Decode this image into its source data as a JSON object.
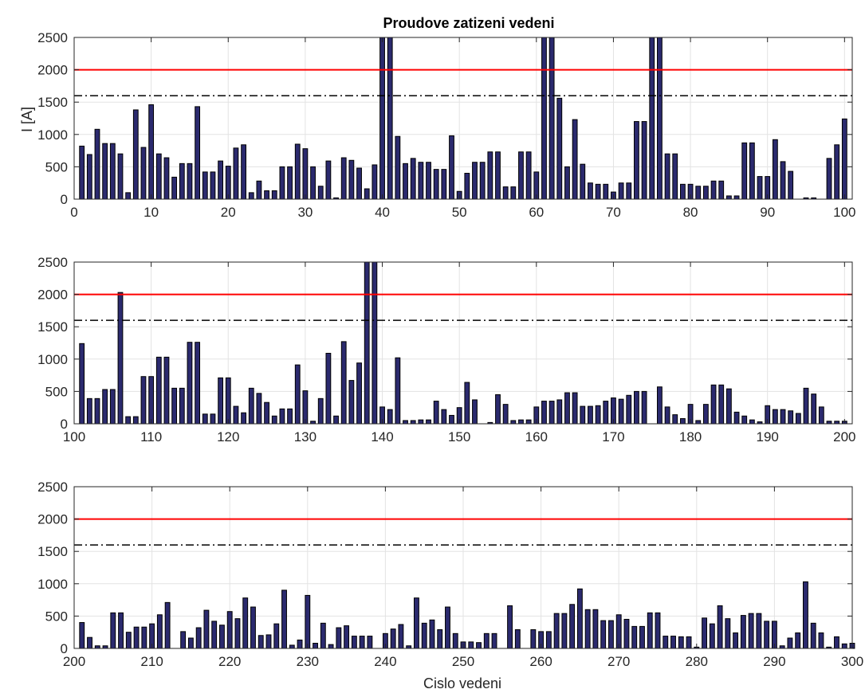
{
  "chart_data": {
    "type": "bar",
    "title": "Proudove zatizeni vedeni",
    "xlabel": "Cislo vedeni",
    "ylabel": "I [A]",
    "ylim": [
      0,
      2500
    ],
    "yticks": [
      0,
      500,
      1000,
      1500,
      2000,
      2500
    ],
    "grid": true,
    "colors": {
      "bar": "#2b2a6e",
      "limit_line": "#ff0000",
      "warning_line": "#000000"
    },
    "reference_lines": [
      {
        "value": 2000,
        "style": "solid",
        "color": "#ff0000"
      },
      {
        "value": 1600,
        "style": "dash-dot",
        "color": "#000000"
      }
    ],
    "panels": [
      {
        "xlim": [
          0,
          101
        ],
        "xticks": [
          0,
          10,
          20,
          30,
          40,
          50,
          60,
          70,
          80,
          90,
          100
        ],
        "x_start": 1,
        "values": [
          820,
          690,
          1080,
          860,
          860,
          700,
          100,
          1380,
          800,
          1460,
          700,
          640,
          340,
          550,
          550,
          1430,
          420,
          420,
          590,
          510,
          790,
          840,
          100,
          280,
          130,
          130,
          500,
          500,
          850,
          780,
          500,
          200,
          590,
          20,
          640,
          600,
          480,
          160,
          530,
          2500,
          2500,
          970,
          550,
          630,
          570,
          570,
          460,
          460,
          980,
          120,
          400,
          570,
          570,
          730,
          730,
          190,
          190,
          730,
          730,
          420,
          2500,
          2500,
          1560,
          500,
          1230,
          540,
          250,
          230,
          230,
          110,
          250,
          250,
          1200,
          1200,
          2500,
          2500,
          700,
          700,
          230,
          230,
          200,
          200,
          280,
          280,
          50,
          50,
          870,
          870,
          350,
          350,
          920,
          580,
          430,
          0,
          20,
          20,
          0,
          630,
          840,
          1240
        ]
      },
      {
        "xlim": [
          100,
          201
        ],
        "xticks": [
          100,
          110,
          120,
          130,
          140,
          150,
          160,
          170,
          180,
          190,
          200
        ],
        "x_start": 101,
        "values": [
          1240,
          390,
          390,
          530,
          530,
          2030,
          110,
          110,
          730,
          730,
          1030,
          1030,
          550,
          550,
          1260,
          1260,
          150,
          150,
          710,
          710,
          270,
          170,
          550,
          470,
          330,
          120,
          230,
          230,
          910,
          510,
          40,
          390,
          1090,
          120,
          1270,
          670,
          940,
          2500,
          2500,
          260,
          220,
          1020,
          50,
          50,
          60,
          60,
          350,
          220,
          130,
          250,
          640,
          370,
          0,
          20,
          450,
          300,
          50,
          60,
          60,
          260,
          350,
          350,
          370,
          480,
          480,
          270,
          270,
          280,
          350,
          400,
          380,
          440,
          500,
          500,
          0,
          570,
          260,
          140,
          80,
          300,
          50,
          300,
          600,
          600,
          540,
          180,
          120,
          60,
          30,
          280,
          220,
          220,
          200,
          160,
          550,
          460,
          260,
          40,
          40,
          40
        ]
      },
      {
        "xlim": [
          200,
          300
        ],
        "xticks": [
          200,
          210,
          220,
          230,
          240,
          250,
          260,
          270,
          280,
          290,
          300
        ],
        "x_start": 201,
        "values": [
          400,
          170,
          40,
          40,
          550,
          550,
          250,
          330,
          330,
          380,
          520,
          710,
          0,
          260,
          160,
          320,
          590,
          420,
          360,
          570,
          460,
          780,
          640,
          200,
          210,
          380,
          900,
          50,
          130,
          820,
          80,
          390,
          60,
          320,
          350,
          190,
          190,
          190,
          0,
          230,
          300,
          370,
          40,
          780,
          390,
          440,
          290,
          640,
          230,
          100,
          100,
          90,
          230,
          230,
          0,
          660,
          290,
          0,
          290,
          260,
          260,
          540,
          540,
          680,
          920,
          600,
          600,
          430,
          430,
          520,
          450,
          340,
          340,
          550,
          550,
          190,
          190,
          180,
          180,
          20,
          470,
          380,
          660,
          460,
          240,
          510,
          540,
          540,
          420,
          420,
          40,
          160,
          240,
          1030,
          390,
          240,
          20,
          180,
          70,
          80
        ]
      }
    ]
  }
}
